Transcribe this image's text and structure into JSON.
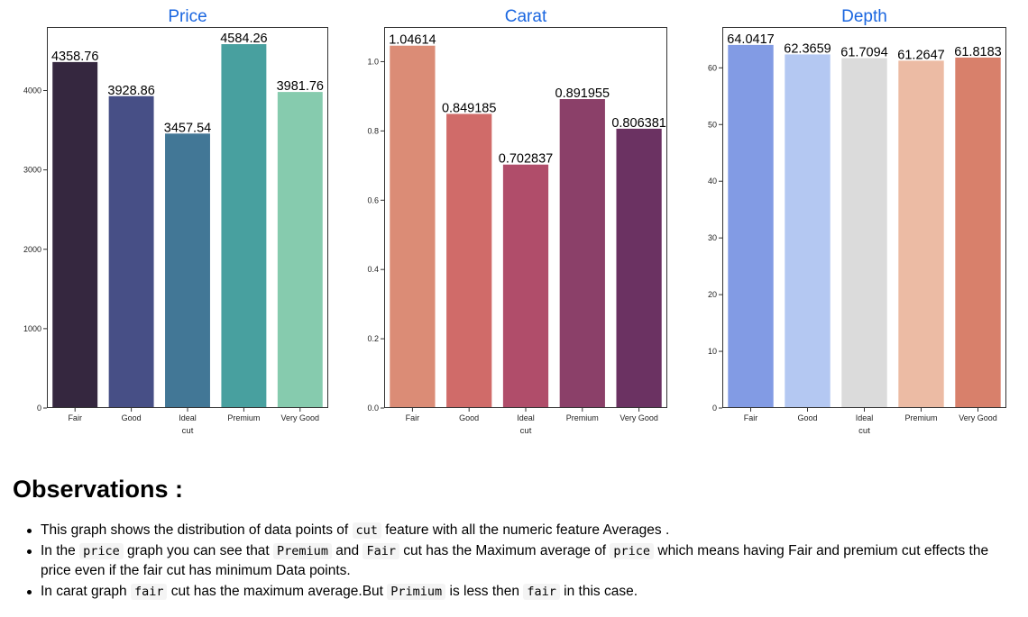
{
  "chart_data": [
    {
      "type": "bar",
      "title": "Price",
      "xlabel": "cut",
      "ylabel": "",
      "categories": [
        "Fair",
        "Good",
        "Ideal",
        "Premium",
        "Very Good"
      ],
      "values": [
        4358.76,
        3928.86,
        3457.54,
        4584.26,
        3981.76
      ],
      "value_labels": [
        "4358.76",
        "3928.86",
        "3457.54",
        "4584.26",
        "3981.76"
      ],
      "ylim": [
        0,
        4800
      ],
      "yticks": [
        0,
        1000,
        2000,
        3000,
        4000
      ],
      "ytick_labels": [
        "0",
        "1000",
        "2000",
        "3000",
        "4000"
      ],
      "colors": [
        "#35273f",
        "#474f86",
        "#427796",
        "#48a09f",
        "#86cbae"
      ],
      "grid": false
    },
    {
      "type": "bar",
      "title": "Carat",
      "xlabel": "cut",
      "ylabel": "",
      "categories": [
        "Fair",
        "Good",
        "Ideal",
        "Premium",
        "Very Good"
      ],
      "values": [
        1.04614,
        0.849185,
        0.702837,
        0.891955,
        0.806381
      ],
      "value_labels": [
        "1.04614",
        "0.849185",
        "0.702837",
        "0.891955",
        "0.806381"
      ],
      "ylim": [
        0,
        1.1
      ],
      "yticks": [
        0,
        0.2,
        0.4,
        0.6,
        0.8,
        1.0
      ],
      "ytick_labels": [
        "0.0",
        "0.2",
        "0.4",
        "0.6",
        "0.8",
        "1.0"
      ],
      "colors": [
        "#db8c76",
        "#d06b69",
        "#b04d6a",
        "#8b4069",
        "#6b3262"
      ],
      "grid": false
    },
    {
      "type": "bar",
      "title": "Depth",
      "xlabel": "cut",
      "ylabel": "",
      "categories": [
        "Fair",
        "Good",
        "Ideal",
        "Premium",
        "Very Good"
      ],
      "values": [
        64.0417,
        62.3659,
        61.7094,
        61.2647,
        61.8183
      ],
      "value_labels": [
        "64.0417",
        "62.3659",
        "61.7094",
        "61.2647",
        "61.8183"
      ],
      "ylim": [
        0,
        67.2
      ],
      "yticks": [
        0,
        10,
        20,
        30,
        40,
        50,
        60
      ],
      "ytick_labels": [
        "0",
        "10",
        "20",
        "30",
        "40",
        "50",
        "60"
      ],
      "colors": [
        "#829be4",
        "#b4c8f2",
        "#dbdbdb",
        "#ecbba4",
        "#d8806b"
      ],
      "grid": false
    }
  ],
  "observations": {
    "title": "Observations :",
    "items": [
      [
        {
          "t": "This graph shows the distribution of data points of "
        },
        {
          "c": "cut"
        },
        {
          "t": " feature with all the numeric feature Averages ."
        }
      ],
      [
        {
          "t": "In the "
        },
        {
          "c": "price"
        },
        {
          "t": " graph you can see that "
        },
        {
          "c": "Premium"
        },
        {
          "t": " and "
        },
        {
          "c": "Fair"
        },
        {
          "t": " cut has the Maximum average of "
        },
        {
          "c": "price"
        },
        {
          "t": " which means having Fair and premium cut effects the price even if the fair cut has minimum Data points."
        }
      ],
      [
        {
          "t": "In carat graph "
        },
        {
          "c": "fair"
        },
        {
          "t": " cut has the maximum average.But "
        },
        {
          "c": "Primium"
        },
        {
          "t": " is less then "
        },
        {
          "c": "fair"
        },
        {
          "t": " in this case."
        }
      ]
    ]
  }
}
